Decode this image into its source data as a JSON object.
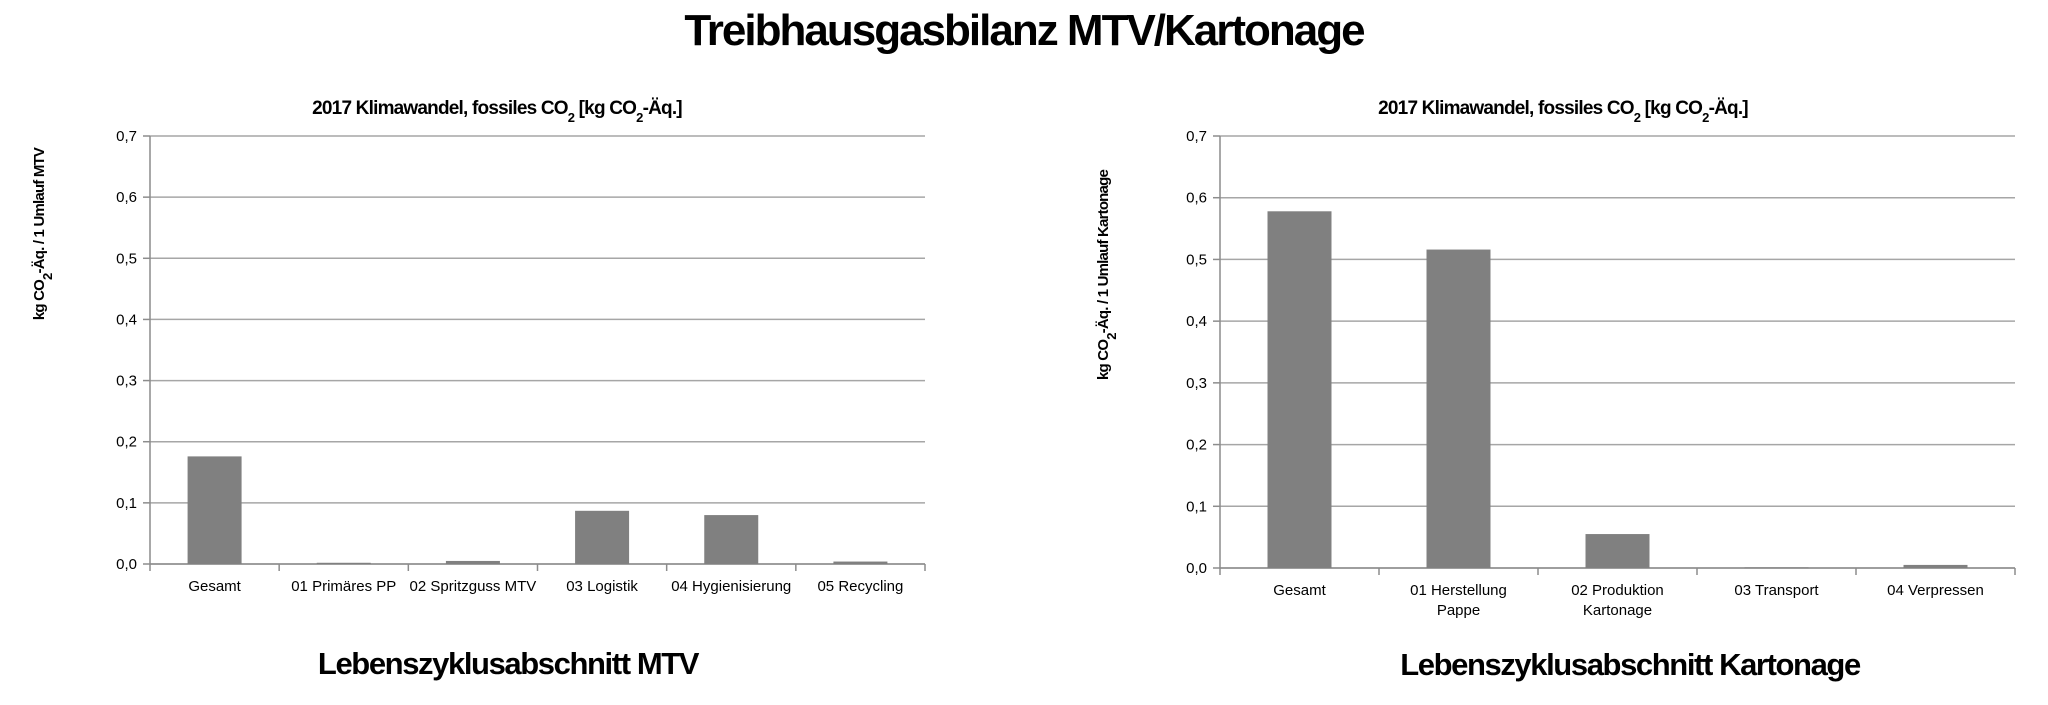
{
  "page": {
    "title": "Treibhausgasbilanz MTV/Kartonage"
  },
  "chart_data": [
    {
      "type": "bar",
      "title_parts": [
        "2017 Klimawandel, fossiles CO",
        "2",
        " [kg CO",
        "2",
        "-Äq.]"
      ],
      "ylabel_parts": [
        "kg CO",
        "2",
        "-Äq. / 1 Umlauf MTV"
      ],
      "xlabel": "Lebenszyklusabschnitt MTV",
      "categories": [
        [
          "Gesamt"
        ],
        [
          "01 Primäres PP"
        ],
        [
          "02 Spritzguss MTV"
        ],
        [
          "03 Logistik"
        ],
        [
          "04 Hygienisierung"
        ],
        [
          "05 Recycling"
        ]
      ],
      "values": [
        0.176,
        0.002,
        0.005,
        0.087,
        0.08,
        0.004
      ],
      "ylim": [
        0,
        0.7
      ],
      "yticks": [
        "0,0",
        "0,1",
        "0,2",
        "0,3",
        "0,4",
        "0,5",
        "0,6",
        "0,7"
      ],
      "grid": true,
      "bar_color": "#808080"
    },
    {
      "type": "bar",
      "title_parts": [
        "2017 Klimawandel, fossiles CO",
        "2",
        " [kg CO",
        "2",
        "-Äq.]"
      ],
      "ylabel_parts": [
        "kg CO",
        "2",
        "-Äq. / 1 Umlauf Kartonage"
      ],
      "xlabel": "Lebenszyklusabschnitt Kartonage",
      "categories": [
        [
          "Gesamt"
        ],
        [
          "01 Herstellung",
          "Pappe"
        ],
        [
          "02 Produktion",
          "Kartonage"
        ],
        [
          "03 Transport"
        ],
        [
          "04 Verpressen"
        ]
      ],
      "values": [
        0.578,
        0.516,
        0.055,
        0.001,
        0.005
      ],
      "ylim": [
        0,
        0.7
      ],
      "yticks": [
        "0,0",
        "0,1",
        "0,2",
        "0,3",
        "0,4",
        "0,5",
        "0,6",
        "0,7"
      ],
      "grid": true,
      "bar_color": "#808080"
    }
  ]
}
